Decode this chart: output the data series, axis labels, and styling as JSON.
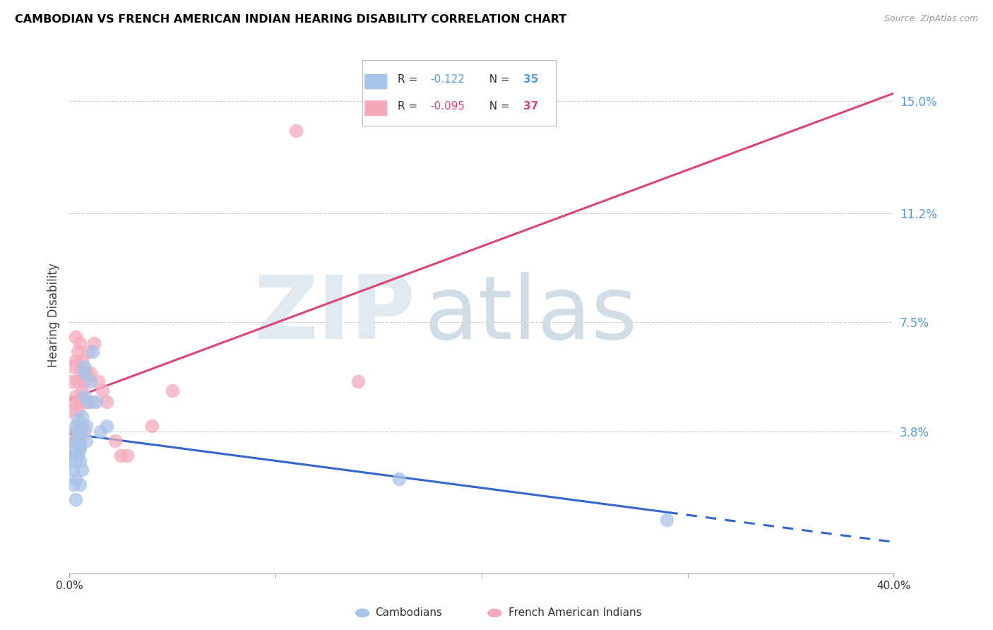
{
  "title": "CAMBODIAN VS FRENCH AMERICAN INDIAN HEARING DISABILITY CORRELATION CHART",
  "source": "Source: ZipAtlas.com",
  "ylabel": "Hearing Disability",
  "ytick_labels": [
    "15.0%",
    "11.2%",
    "7.5%",
    "3.8%"
  ],
  "ytick_vals": [
    0.15,
    0.112,
    0.075,
    0.038
  ],
  "xlim": [
    0.0,
    0.4
  ],
  "ylim": [
    -0.01,
    0.165
  ],
  "legend_blue_r": "-0.122",
  "legend_blue_n": "35",
  "legend_pink_r": "-0.095",
  "legend_pink_n": "37",
  "blue_scatter_color": "#a8c4e8",
  "pink_scatter_color": "#f5aabb",
  "blue_line_color": "#3366cc",
  "pink_line_color": "#dd4477",
  "cambodian_x": [
    0.001,
    0.001,
    0.002,
    0.002,
    0.002,
    0.003,
    0.003,
    0.003,
    0.003,
    0.003,
    0.004,
    0.004,
    0.004,
    0.004,
    0.005,
    0.005,
    0.005,
    0.005,
    0.005,
    0.006,
    0.006,
    0.006,
    0.007,
    0.007,
    0.007,
    0.008,
    0.008,
    0.009,
    0.01,
    0.011,
    0.013,
    0.015,
    0.018,
    0.16,
    0.29
  ],
  "cambodian_y": [
    0.03,
    0.028,
    0.032,
    0.025,
    0.02,
    0.015,
    0.022,
    0.03,
    0.035,
    0.04,
    0.03,
    0.035,
    0.042,
    0.038,
    0.02,
    0.028,
    0.033,
    0.038,
    0.032,
    0.025,
    0.038,
    0.043,
    0.05,
    0.058,
    0.06,
    0.035,
    0.04,
    0.048,
    0.055,
    0.065,
    0.048,
    0.038,
    0.04,
    0.022,
    0.008
  ],
  "french_x": [
    0.001,
    0.001,
    0.002,
    0.002,
    0.002,
    0.003,
    0.003,
    0.003,
    0.003,
    0.004,
    0.004,
    0.004,
    0.005,
    0.005,
    0.005,
    0.005,
    0.006,
    0.006,
    0.006,
    0.007,
    0.007,
    0.008,
    0.008,
    0.009,
    0.01,
    0.011,
    0.012,
    0.014,
    0.016,
    0.018,
    0.022,
    0.025,
    0.028,
    0.04,
    0.05,
    0.11,
    0.14
  ],
  "french_y": [
    0.045,
    0.055,
    0.035,
    0.048,
    0.06,
    0.038,
    0.05,
    0.062,
    0.07,
    0.045,
    0.055,
    0.065,
    0.035,
    0.048,
    0.058,
    0.068,
    0.04,
    0.052,
    0.062,
    0.038,
    0.055,
    0.048,
    0.058,
    0.065,
    0.058,
    0.048,
    0.068,
    0.055,
    0.052,
    0.048,
    0.035,
    0.03,
    0.03,
    0.04,
    0.052,
    0.14,
    0.055
  ]
}
